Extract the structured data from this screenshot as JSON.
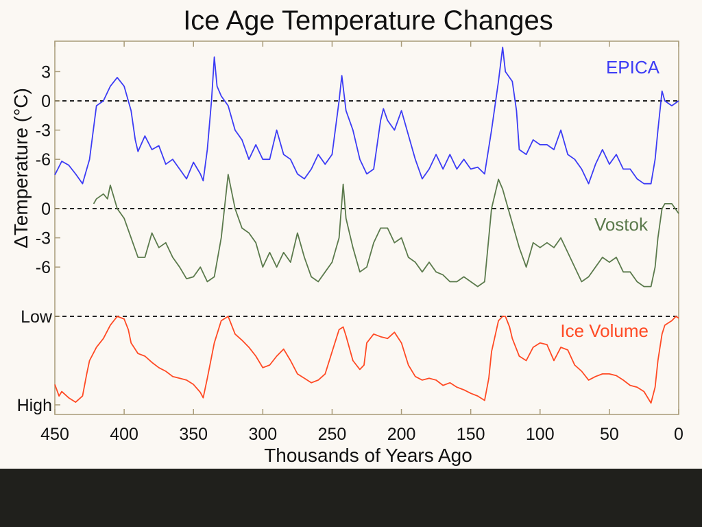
{
  "chart_data": {
    "type": "line",
    "title": "Ice Age Temperature Changes",
    "xlabel": "Thousands of Years Ago",
    "ylabel": "ΔTemperature (°C)",
    "xlim": [
      450,
      0
    ],
    "x_ticks": [
      450,
      400,
      350,
      300,
      250,
      200,
      150,
      100,
      50,
      0
    ],
    "grid": false,
    "reference_lines": "dashed line at 0 for EPICA and Vostok, at Low for Ice Volume",
    "series": [
      {
        "name": "EPICA",
        "color": "#3c3cf5",
        "panel": "epica",
        "unit": "°C",
        "y_ticks": [
          3,
          0,
          -3,
          -6
        ],
        "points": [
          [
            450,
            -7.6
          ],
          [
            445,
            -6.2
          ],
          [
            440,
            -6.6
          ],
          [
            435,
            -7.5
          ],
          [
            430,
            -8.5
          ],
          [
            425,
            -6
          ],
          [
            420,
            -0.5
          ],
          [
            415,
            0
          ],
          [
            410,
            1.5
          ],
          [
            405,
            2.4
          ],
          [
            400,
            1.5
          ],
          [
            395,
            -1
          ],
          [
            392,
            -4
          ],
          [
            390,
            -5.2
          ],
          [
            385,
            -3.6
          ],
          [
            380,
            -5
          ],
          [
            375,
            -4.6
          ],
          [
            370,
            -6.5
          ],
          [
            365,
            -6
          ],
          [
            360,
            -7
          ],
          [
            355,
            -8
          ],
          [
            350,
            -6.3
          ],
          [
            345,
            -7.5
          ],
          [
            343,
            -8.2
          ],
          [
            340,
            -5
          ],
          [
            337,
            0
          ],
          [
            335,
            4.5
          ],
          [
            333,
            1.5
          ],
          [
            330,
            0.5
          ],
          [
            325,
            -0.5
          ],
          [
            320,
            -3
          ],
          [
            315,
            -4
          ],
          [
            310,
            -6
          ],
          [
            305,
            -4.5
          ],
          [
            300,
            -6
          ],
          [
            295,
            -6
          ],
          [
            290,
            -3
          ],
          [
            285,
            -5.5
          ],
          [
            280,
            -6
          ],
          [
            275,
            -7.5
          ],
          [
            270,
            -8
          ],
          [
            265,
            -7
          ],
          [
            260,
            -5.5
          ],
          [
            255,
            -6.5
          ],
          [
            250,
            -5.5
          ],
          [
            245,
            0
          ],
          [
            243,
            2.6
          ],
          [
            240,
            -1
          ],
          [
            235,
            -3
          ],
          [
            230,
            -6
          ],
          [
            225,
            -7.5
          ],
          [
            220,
            -7
          ],
          [
            215,
            -2
          ],
          [
            213,
            -0.8
          ],
          [
            210,
            -2
          ],
          [
            205,
            -3
          ],
          [
            200,
            -1
          ],
          [
            195,
            -3.5
          ],
          [
            190,
            -6
          ],
          [
            185,
            -8
          ],
          [
            180,
            -7
          ],
          [
            175,
            -5.5
          ],
          [
            170,
            -7
          ],
          [
            165,
            -5.5
          ],
          [
            160,
            -7
          ],
          [
            155,
            -6
          ],
          [
            150,
            -7
          ],
          [
            145,
            -6.8
          ],
          [
            140,
            -7.5
          ],
          [
            135,
            -3
          ],
          [
            130,
            2
          ],
          [
            127,
            5.5
          ],
          [
            125,
            3
          ],
          [
            120,
            2
          ],
          [
            117,
            -1
          ],
          [
            115,
            -5
          ],
          [
            110,
            -5.5
          ],
          [
            105,
            -4
          ],
          [
            100,
            -4.5
          ],
          [
            95,
            -4.5
          ],
          [
            90,
            -5
          ],
          [
            85,
            -3
          ],
          [
            80,
            -5.5
          ],
          [
            75,
            -6
          ],
          [
            70,
            -7
          ],
          [
            65,
            -8.5
          ],
          [
            60,
            -6.5
          ],
          [
            55,
            -5
          ],
          [
            50,
            -6.5
          ],
          [
            45,
            -5.5
          ],
          [
            40,
            -7
          ],
          [
            35,
            -7
          ],
          [
            30,
            -8
          ],
          [
            25,
            -8.5
          ],
          [
            20,
            -8.5
          ],
          [
            17,
            -6
          ],
          [
            15,
            -3
          ],
          [
            12,
            1
          ],
          [
            10,
            0
          ],
          [
            5,
            -0.5
          ],
          [
            0,
            0
          ]
        ]
      },
      {
        "name": "Vostok",
        "color": "#5b7a4c",
        "panel": "vostok",
        "unit": "°C",
        "y_ticks": [
          0,
          -3,
          -6
        ],
        "points": [
          [
            422,
            0.5
          ],
          [
            420,
            1
          ],
          [
            415,
            1.5
          ],
          [
            412,
            1
          ],
          [
            410,
            2.4
          ],
          [
            405,
            0
          ],
          [
            400,
            -1
          ],
          [
            395,
            -3
          ],
          [
            390,
            -5
          ],
          [
            385,
            -5
          ],
          [
            380,
            -2.5
          ],
          [
            375,
            -4
          ],
          [
            370,
            -3.5
          ],
          [
            365,
            -5
          ],
          [
            360,
            -6
          ],
          [
            355,
            -7.2
          ],
          [
            350,
            -7
          ],
          [
            345,
            -6
          ],
          [
            340,
            -7.5
          ],
          [
            335,
            -7
          ],
          [
            330,
            -3
          ],
          [
            325,
            3.5
          ],
          [
            320,
            0
          ],
          [
            315,
            -2
          ],
          [
            310,
            -2.5
          ],
          [
            305,
            -3.5
          ],
          [
            300,
            -6
          ],
          [
            295,
            -4.5
          ],
          [
            290,
            -6
          ],
          [
            285,
            -4.5
          ],
          [
            280,
            -5.5
          ],
          [
            275,
            -2.5
          ],
          [
            270,
            -5
          ],
          [
            265,
            -7
          ],
          [
            260,
            -7.5
          ],
          [
            255,
            -6.5
          ],
          [
            250,
            -5.5
          ],
          [
            245,
            -3
          ],
          [
            242,
            2.5
          ],
          [
            240,
            -1
          ],
          [
            235,
            -4
          ],
          [
            230,
            -6.5
          ],
          [
            225,
            -6
          ],
          [
            220,
            -3.5
          ],
          [
            215,
            -2
          ],
          [
            210,
            -2
          ],
          [
            205,
            -3.5
          ],
          [
            200,
            -3
          ],
          [
            195,
            -5
          ],
          [
            190,
            -5.5
          ],
          [
            185,
            -6.5
          ],
          [
            180,
            -5.5
          ],
          [
            175,
            -6.5
          ],
          [
            170,
            -6.8
          ],
          [
            165,
            -7.5
          ],
          [
            160,
            -7.5
          ],
          [
            155,
            -7
          ],
          [
            150,
            -7.5
          ],
          [
            145,
            -8
          ],
          [
            140,
            -7.5
          ],
          [
            135,
            0
          ],
          [
            130,
            3
          ],
          [
            127,
            2
          ],
          [
            125,
            1
          ],
          [
            120,
            -1.5
          ],
          [
            115,
            -4
          ],
          [
            110,
            -6
          ],
          [
            105,
            -3.5
          ],
          [
            100,
            -4
          ],
          [
            95,
            -3.5
          ],
          [
            90,
            -4
          ],
          [
            85,
            -3
          ],
          [
            80,
            -4.5
          ],
          [
            75,
            -6
          ],
          [
            70,
            -7.5
          ],
          [
            65,
            -7
          ],
          [
            60,
            -6
          ],
          [
            55,
            -5
          ],
          [
            50,
            -5.5
          ],
          [
            45,
            -5
          ],
          [
            40,
            -6.5
          ],
          [
            35,
            -6.5
          ],
          [
            30,
            -7.5
          ],
          [
            25,
            -8
          ],
          [
            20,
            -8
          ],
          [
            17,
            -6
          ],
          [
            15,
            -3
          ],
          [
            12,
            0
          ],
          [
            10,
            0.5
          ],
          [
            5,
            0.5
          ],
          [
            0,
            -0.5
          ]
        ]
      },
      {
        "name": "Ice Volume",
        "color": "#ff4a24",
        "panel": "ice",
        "unit": "relative (0 = Low, 1 = High)",
        "y_tick_labels": [
          "Low",
          "High"
        ],
        "points": [
          [
            450,
            0.77
          ],
          [
            447,
            0.9
          ],
          [
            445,
            0.85
          ],
          [
            440,
            0.92
          ],
          [
            435,
            0.97
          ],
          [
            430,
            0.9
          ],
          [
            427,
            0.65
          ],
          [
            425,
            0.5
          ],
          [
            420,
            0.35
          ],
          [
            415,
            0.25
          ],
          [
            410,
            0.1
          ],
          [
            405,
            0
          ],
          [
            400,
            0.03
          ],
          [
            397,
            0.15
          ],
          [
            395,
            0.3
          ],
          [
            390,
            0.42
          ],
          [
            385,
            0.45
          ],
          [
            380,
            0.52
          ],
          [
            375,
            0.58
          ],
          [
            370,
            0.62
          ],
          [
            365,
            0.68
          ],
          [
            360,
            0.7
          ],
          [
            355,
            0.72
          ],
          [
            350,
            0.77
          ],
          [
            345,
            0.86
          ],
          [
            343,
            0.92
          ],
          [
            340,
            0.7
          ],
          [
            335,
            0.3
          ],
          [
            330,
            0.05
          ],
          [
            325,
            0
          ],
          [
            320,
            0.2
          ],
          [
            315,
            0.27
          ],
          [
            310,
            0.35
          ],
          [
            305,
            0.45
          ],
          [
            300,
            0.58
          ],
          [
            295,
            0.55
          ],
          [
            290,
            0.45
          ],
          [
            285,
            0.37
          ],
          [
            280,
            0.5
          ],
          [
            275,
            0.65
          ],
          [
            270,
            0.7
          ],
          [
            265,
            0.75
          ],
          [
            260,
            0.72
          ],
          [
            255,
            0.65
          ],
          [
            250,
            0.4
          ],
          [
            245,
            0.15
          ],
          [
            242,
            0.12
          ],
          [
            240,
            0.22
          ],
          [
            235,
            0.5
          ],
          [
            230,
            0.6
          ],
          [
            227,
            0.55
          ],
          [
            225,
            0.3
          ],
          [
            220,
            0.2
          ],
          [
            215,
            0.23
          ],
          [
            210,
            0.25
          ],
          [
            205,
            0.18
          ],
          [
            200,
            0.3
          ],
          [
            195,
            0.55
          ],
          [
            190,
            0.68
          ],
          [
            185,
            0.72
          ],
          [
            180,
            0.7
          ],
          [
            175,
            0.72
          ],
          [
            170,
            0.78
          ],
          [
            165,
            0.75
          ],
          [
            160,
            0.8
          ],
          [
            155,
            0.83
          ],
          [
            150,
            0.87
          ],
          [
            145,
            0.9
          ],
          [
            140,
            0.95
          ],
          [
            137,
            0.7
          ],
          [
            135,
            0.4
          ],
          [
            130,
            0.05
          ],
          [
            127,
            0
          ],
          [
            125,
            0
          ],
          [
            122,
            0.12
          ],
          [
            120,
            0.25
          ],
          [
            115,
            0.45
          ],
          [
            110,
            0.5
          ],
          [
            105,
            0.35
          ],
          [
            100,
            0.3
          ],
          [
            95,
            0.32
          ],
          [
            90,
            0.5
          ],
          [
            85,
            0.35
          ],
          [
            80,
            0.38
          ],
          [
            75,
            0.55
          ],
          [
            70,
            0.62
          ],
          [
            65,
            0.72
          ],
          [
            60,
            0.68
          ],
          [
            55,
            0.65
          ],
          [
            50,
            0.65
          ],
          [
            45,
            0.67
          ],
          [
            40,
            0.72
          ],
          [
            35,
            0.78
          ],
          [
            30,
            0.8
          ],
          [
            25,
            0.85
          ],
          [
            20,
            0.98
          ],
          [
            17,
            0.8
          ],
          [
            15,
            0.5
          ],
          [
            12,
            0.2
          ],
          [
            10,
            0.1
          ],
          [
            5,
            0.05
          ],
          [
            2,
            0
          ],
          [
            0,
            0.02
          ]
        ]
      }
    ]
  }
}
